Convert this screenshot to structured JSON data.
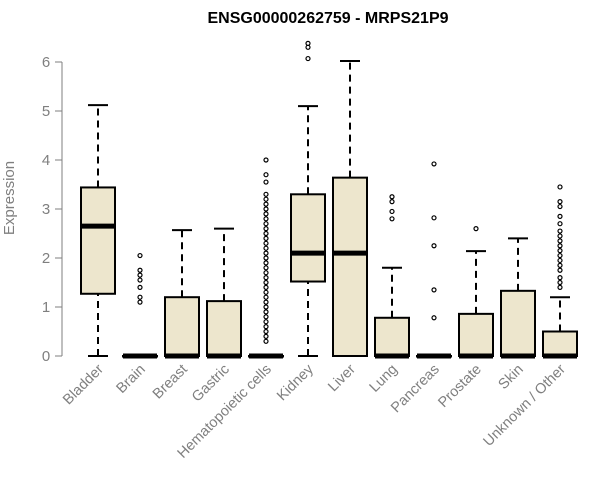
{
  "chart_data": {
    "type": "boxplot",
    "title": "ENSG00000262759 - MRPS21P9",
    "xlabel": "",
    "ylabel": "Expression",
    "ylim": [
      0,
      6.5
    ],
    "yticks": [
      0,
      1,
      2,
      3,
      4,
      5,
      6
    ],
    "grid": false,
    "colors": {
      "box_fill": "#ede6cd",
      "stroke": "#000000",
      "axis": "#7f7f7f"
    },
    "categories": [
      "Bladder",
      "Brain",
      "Breast",
      "Gastric",
      "Hematopoietic cells",
      "Kidney",
      "Liver",
      "Lung",
      "Pancreas",
      "Prostate",
      "Skin",
      "Unknown / Other"
    ],
    "boxes": [
      {
        "category": "Bladder",
        "whisker_low": 0,
        "q1": 1.27,
        "median": 2.65,
        "q3": 3.44,
        "whisker_high": 5.12,
        "outliers": []
      },
      {
        "category": "Brain",
        "whisker_low": 0,
        "q1": 0,
        "median": 0,
        "q3": 0,
        "whisker_high": 0,
        "outliers": [
          1.1,
          1.2,
          1.4,
          1.55,
          1.65,
          1.75,
          2.05
        ]
      },
      {
        "category": "Breast",
        "whisker_low": 0,
        "q1": 0,
        "median": 0,
        "q3": 1.2,
        "whisker_high": 2.57,
        "outliers": []
      },
      {
        "category": "Gastric",
        "whisker_low": 0,
        "q1": 0,
        "median": 0,
        "q3": 1.12,
        "whisker_high": 2.6,
        "outliers": []
      },
      {
        "category": "Hematopoietic cells",
        "whisker_low": 0,
        "q1": 0,
        "median": 0,
        "q3": 0,
        "whisker_high": 0,
        "outliers": [
          0.3,
          0.4,
          0.5,
          0.6,
          0.7,
          0.8,
          0.9,
          1.0,
          1.1,
          1.2,
          1.3,
          1.4,
          1.5,
          1.6,
          1.7,
          1.8,
          1.9,
          2.0,
          2.1,
          2.2,
          2.3,
          2.4,
          2.5,
          2.6,
          2.7,
          2.8,
          2.9,
          3.0,
          3.1,
          3.2,
          3.3,
          3.55,
          3.7,
          4.0
        ]
      },
      {
        "category": "Kidney",
        "whisker_low": 0,
        "q1": 1.52,
        "median": 2.1,
        "q3": 3.3,
        "whisker_high": 5.1,
        "outliers": [
          6.07,
          6.3,
          6.38
        ]
      },
      {
        "category": "Liver",
        "whisker_low": 0,
        "q1": 0,
        "median": 2.1,
        "q3": 3.64,
        "whisker_high": 6.02,
        "outliers": []
      },
      {
        "category": "Lung",
        "whisker_low": 0,
        "q1": 0,
        "median": 0,
        "q3": 0.78,
        "whisker_high": 1.8,
        "outliers": [
          2.8,
          2.95,
          3.15,
          3.25
        ]
      },
      {
        "category": "Pancreas",
        "whisker_low": 0,
        "q1": 0,
        "median": 0,
        "q3": 0,
        "whisker_high": 0,
        "outliers": [
          0.78,
          1.35,
          2.25,
          2.82,
          3.92
        ]
      },
      {
        "category": "Prostate",
        "whisker_low": 0,
        "q1": 0,
        "median": 0,
        "q3": 0.86,
        "whisker_high": 2.14,
        "outliers": [
          2.6
        ]
      },
      {
        "category": "Skin",
        "whisker_low": 0,
        "q1": 0,
        "median": 0,
        "q3": 1.33,
        "whisker_high": 2.4,
        "outliers": []
      },
      {
        "category": "Unknown / Other",
        "whisker_low": 0,
        "q1": 0,
        "median": 0,
        "q3": 0.5,
        "whisker_high": 1.2,
        "outliers": [
          1.4,
          1.5,
          1.6,
          1.75,
          1.85,
          1.95,
          2.05,
          2.15,
          2.25,
          2.35,
          2.45,
          2.55,
          2.7,
          2.85,
          3.05,
          3.15,
          3.45
        ]
      }
    ]
  }
}
